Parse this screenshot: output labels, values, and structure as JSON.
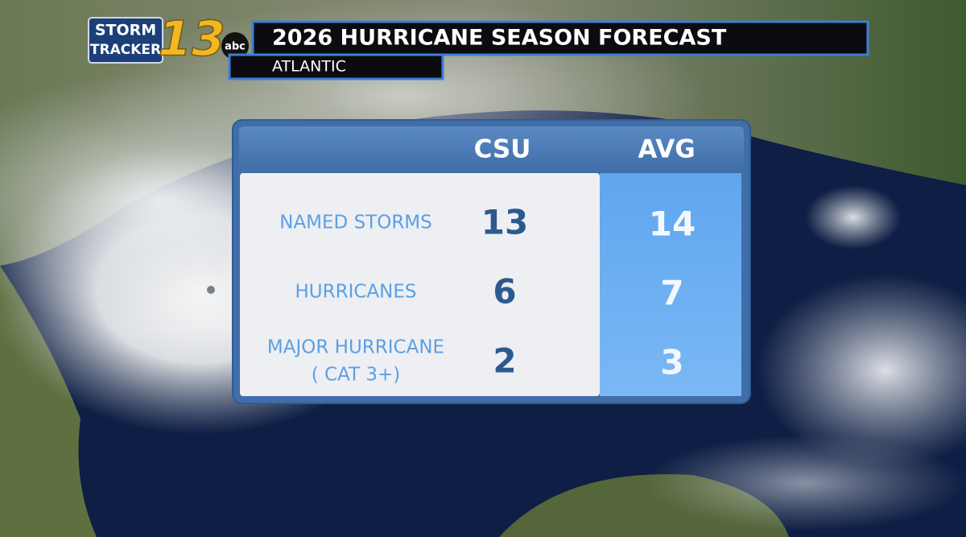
{
  "logo": {
    "line1": "STORM",
    "line2": "TRACKER",
    "number": "13",
    "network": "abc"
  },
  "header": {
    "title": "2026 HURRICANE SEASON FORECAST",
    "subtitle": "ATLANTIC"
  },
  "table": {
    "columns": [
      "CSU",
      "AVG"
    ],
    "rows": [
      {
        "label": [
          "NAMED STORMS"
        ],
        "csu": 13,
        "avg": 14
      },
      {
        "label": [
          "HURRICANES"
        ],
        "csu": 6,
        "avg": 7
      },
      {
        "label": [
          "MAJOR HURRICANE",
          "( CAT 3+)"
        ],
        "csu": 2,
        "avg": 3
      }
    ]
  }
}
